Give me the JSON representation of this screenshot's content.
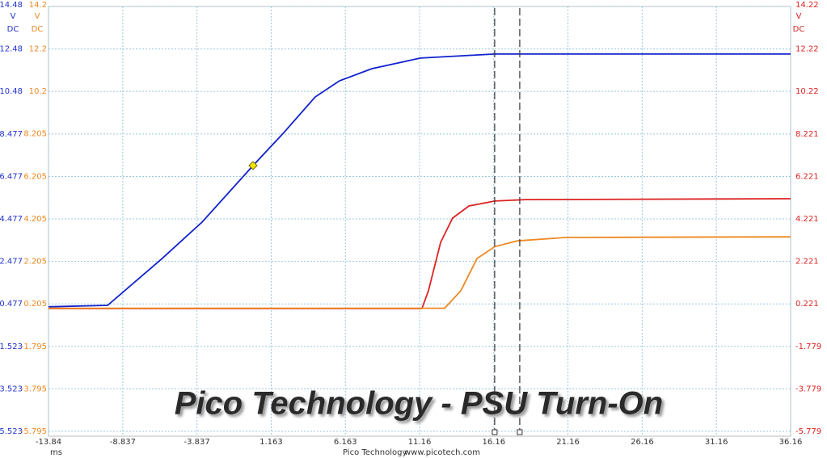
{
  "chart_data": {
    "type": "line",
    "title": "Pico Technology - PSU Turn-On",
    "footer": [
      "Pico Technology",
      "www.picotech.com"
    ],
    "xlabel": "ms",
    "xlim": [
      -13.84,
      36.16
    ],
    "xticks": [
      -13.84,
      -8.837,
      -3.837,
      1.163,
      6.163,
      11.16,
      16.16,
      21.16,
      26.16,
      31.16,
      36.16
    ],
    "ylabel": "V",
    "ycoupling": "DC",
    "ycolor": "#2233cc",
    "ylim": [
      -5.523,
      14.48
    ],
    "yticks": [
      -5.523,
      -3.523,
      -1.523,
      0.477,
      2.477,
      4.477,
      6.477,
      8.477,
      10.48,
      12.48,
      14.48
    ],
    "y2label": "V",
    "y2coupling": "DC",
    "y2color": "#ee8822",
    "y2lim": [
      -5.795,
      14.2
    ],
    "y2ticks": [
      -5.795,
      -3.795,
      -1.795,
      0.205,
      2.205,
      4.205,
      6.205,
      8.205,
      10.2,
      12.2,
      14.2
    ],
    "y3label": "V",
    "y3coupling": "DC",
    "y3color": "#dd2222",
    "y3lim": [
      -5.779,
      14.22
    ],
    "y3ticks": [
      -5.779,
      -3.779,
      -1.779,
      0.221,
      2.221,
      4.221,
      6.221,
      8.221,
      10.22,
      12.22,
      14.22
    ],
    "grid": true,
    "cursors": [
      16.22,
      17.91
    ],
    "trigger": {
      "x": -0.06,
      "y": 6.99
    },
    "series": [
      {
        "axis": "y",
        "color": "#1122cc",
        "x": [
          -13.84,
          -9.86,
          -6.21,
          -3.49,
          -0.06,
          1.96,
          4.13,
          5.77,
          7.95,
          11.21,
          16.23,
          21.0,
          36.16
        ],
        "values": [
          0.34,
          0.41,
          2.6,
          4.33,
          6.99,
          8.5,
          10.22,
          10.98,
          11.55,
          12.05,
          12.24,
          12.24,
          12.24
        ]
      },
      {
        "axis": "y2",
        "color": "#ee8822",
        "x": [
          -13.84,
          12.85,
          13.94,
          15.03,
          16.23,
          17.75,
          21.0,
          36.16
        ],
        "values": [
          0.0,
          0.0,
          0.82,
          2.34,
          2.9,
          3.17,
          3.33,
          3.36
        ]
      },
      {
        "axis": "y3",
        "color": "#dd2222",
        "x": [
          -13.84,
          11.32,
          11.76,
          12.58,
          13.39,
          14.48,
          16.23,
          18.3,
          36.16
        ],
        "values": [
          0.0,
          0.0,
          0.84,
          3.12,
          4.26,
          4.83,
          5.06,
          5.13,
          5.17
        ]
      }
    ]
  }
}
